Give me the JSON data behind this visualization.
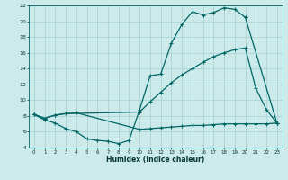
{
  "xlabel": "Humidex (Indice chaleur)",
  "bg_color": "#cceaea",
  "grid_color": "#aad4d4",
  "line_color": "#006666",
  "line1_x": [
    0,
    1,
    2,
    3,
    4,
    5,
    6,
    7,
    8,
    9,
    10,
    11,
    12,
    13,
    14,
    15,
    16,
    17,
    18,
    19,
    20,
    23
  ],
  "line1_y": [
    8.2,
    7.5,
    7.1,
    6.4,
    6.0,
    5.1,
    4.9,
    4.8,
    4.5,
    4.9,
    8.8,
    13.1,
    13.3,
    17.2,
    19.6,
    21.2,
    20.8,
    21.1,
    21.7,
    21.5,
    20.5,
    7.1
  ],
  "line2_x": [
    0,
    1,
    2,
    3,
    10,
    11,
    12,
    13,
    14,
    15,
    16,
    17,
    18,
    19,
    20,
    21,
    22,
    23
  ],
  "line2_y": [
    8.2,
    7.7,
    8.1,
    8.3,
    8.5,
    9.8,
    11.0,
    12.2,
    13.2,
    14.0,
    14.8,
    15.5,
    16.0,
    16.4,
    16.6,
    11.5,
    8.8,
    7.1
  ],
  "line3_x": [
    0,
    1,
    2,
    3,
    4,
    10,
    11,
    12,
    13,
    14,
    15,
    16,
    17,
    18,
    19,
    20,
    21,
    22,
    23
  ],
  "line3_y": [
    8.2,
    7.7,
    8.1,
    8.3,
    8.4,
    6.3,
    6.4,
    6.5,
    6.6,
    6.7,
    6.8,
    6.8,
    6.9,
    7.0,
    7.0,
    7.0,
    7.0,
    7.0,
    7.1
  ],
  "ylim": [
    4,
    22
  ],
  "xlim": [
    -0.5,
    23.5
  ],
  "yticks": [
    4,
    6,
    8,
    10,
    12,
    14,
    16,
    18,
    20,
    22
  ],
  "xticks": [
    0,
    1,
    2,
    3,
    4,
    5,
    6,
    7,
    8,
    9,
    10,
    11,
    12,
    13,
    14,
    15,
    16,
    17,
    18,
    19,
    20,
    21,
    22,
    23
  ]
}
